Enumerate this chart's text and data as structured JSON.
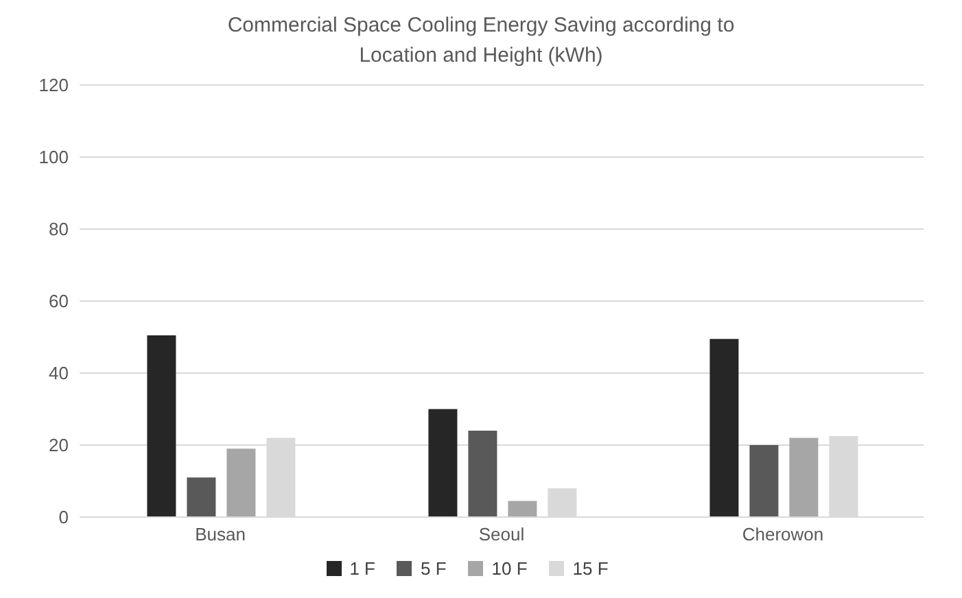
{
  "chart_data": {
    "type": "bar",
    "title": "Commercial Space Cooling Energy  Saving according to Location and Height (kWh)",
    "categories": [
      "Busan",
      "Seoul",
      "Cherowon"
    ],
    "series": [
      {
        "name": "1 F",
        "color": "#262626",
        "values": [
          50.5,
          30,
          49.5
        ]
      },
      {
        "name": "5 F",
        "color": "#595959",
        "values": [
          11,
          24,
          20
        ]
      },
      {
        "name": "10 F",
        "color": "#a6a6a6",
        "values": [
          19,
          4.5,
          22
        ]
      },
      {
        "name": "15 F",
        "color": "#d9d9d9",
        "values": [
          22,
          8,
          22.5
        ]
      }
    ],
    "ylim": [
      0,
      120
    ],
    "yticks": [
      0,
      20,
      40,
      60,
      80,
      100,
      120
    ],
    "grid": "y",
    "legend": "bottom"
  }
}
